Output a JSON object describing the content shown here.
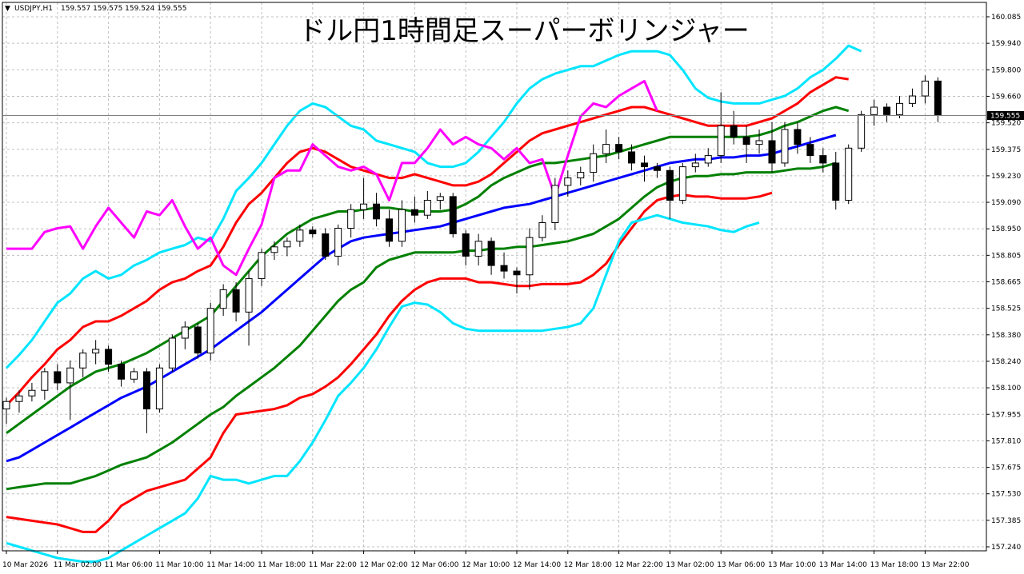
{
  "header": {
    "symbol": "USDJPY,H1",
    "ohlc": "159.557 159.575 159.524 159.555"
  },
  "title": "ドル円1時間足スーパーボリンジャー",
  "current_price_label": "159.555",
  "colors": {
    "background": "#ffffff",
    "grid": "#c0c0c0",
    "candle": "#000000",
    "middle": "#0000ff",
    "band1": "#008000",
    "band2": "#ff0000",
    "band3": "#00e5ff",
    "lagging": "#ff00ff"
  },
  "chart_data": {
    "type": "candlestick",
    "title": "ドル円1時間足スーパーボリンジャー",
    "ylim": [
      157.24,
      160.085
    ],
    "y_ticks": [
      "160.085",
      "159.940",
      "159.800",
      "159.660",
      "159.520",
      "159.375",
      "159.230",
      "159.090",
      "158.950",
      "158.805",
      "158.665",
      "158.525",
      "158.380",
      "158.240",
      "158.100",
      "157.955",
      "157.810",
      "157.675",
      "157.530",
      "157.385",
      "157.240"
    ],
    "x_ticks": [
      "10 Mar 2026",
      "11 Mar 02:00",
      "11 Mar 06:00",
      "11 Mar 10:00",
      "11 Mar 14:00",
      "11 Mar 18:00",
      "11 Mar 22:00",
      "12 Mar 02:00",
      "12 Mar 06:00",
      "12 Mar 10:00",
      "12 Mar 14:00",
      "12 Mar 18:00",
      "12 Mar 22:00",
      "13 Mar 02:00",
      "13 Mar 06:00",
      "13 Mar 10:00",
      "13 Mar 14:00",
      "13 Mar 18:00",
      "13 Mar 22:00"
    ],
    "x_tick_index": [
      0,
      4,
      8,
      12,
      16,
      20,
      24,
      28,
      32,
      36,
      40,
      44,
      48,
      52,
      56,
      60,
      64,
      68,
      72
    ],
    "grid": true,
    "candles": [
      [
        157.98,
        158.02,
        157.9,
        158.04
      ],
      [
        158.02,
        158.05,
        157.96,
        158.08
      ],
      [
        158.05,
        158.08,
        158.02,
        158.12
      ],
      [
        158.08,
        158.18,
        158.03,
        158.2
      ],
      [
        158.18,
        158.12,
        158.08,
        158.22
      ],
      [
        158.12,
        158.2,
        157.92,
        158.24
      ],
      [
        158.2,
        158.28,
        158.15,
        158.3
      ],
      [
        158.28,
        158.3,
        158.22,
        158.35
      ],
      [
        158.3,
        158.22,
        158.18,
        158.32
      ],
      [
        158.22,
        158.14,
        158.1,
        158.24
      ],
      [
        158.14,
        158.18,
        158.12,
        158.2
      ],
      [
        158.18,
        157.98,
        157.85,
        158.2
      ],
      [
        157.98,
        158.2,
        157.96,
        158.22
      ],
      [
        158.2,
        158.36,
        158.18,
        158.38
      ],
      [
        158.36,
        158.42,
        158.3,
        158.45
      ],
      [
        158.42,
        158.28,
        158.25,
        158.44
      ],
      [
        158.28,
        158.52,
        158.24,
        158.55
      ],
      [
        158.52,
        158.62,
        158.48,
        158.65
      ],
      [
        158.62,
        158.5,
        158.45,
        158.66
      ],
      [
        158.5,
        158.68,
        158.32,
        158.72
      ],
      [
        158.68,
        158.82,
        158.64,
        158.84
      ],
      [
        158.82,
        158.85,
        158.78,
        158.88
      ],
      [
        158.85,
        158.88,
        158.8,
        158.9
      ],
      [
        158.88,
        158.94,
        158.85,
        158.97
      ],
      [
        158.94,
        158.92,
        158.9,
        158.96
      ],
      [
        158.92,
        158.8,
        158.78,
        158.95
      ],
      [
        158.8,
        158.95,
        158.75,
        158.97
      ],
      [
        158.95,
        159.05,
        158.9,
        159.08
      ],
      [
        159.05,
        159.08,
        159.0,
        159.22
      ],
      [
        159.08,
        159.0,
        158.96,
        159.14
      ],
      [
        159.0,
        158.88,
        158.85,
        159.05
      ],
      [
        158.88,
        159.05,
        158.85,
        159.1
      ],
      [
        159.05,
        159.02,
        158.98,
        159.12
      ],
      [
        159.02,
        159.1,
        159.0,
        159.15
      ],
      [
        159.1,
        159.12,
        159.05,
        159.14
      ],
      [
        159.12,
        158.92,
        158.9,
        159.14
      ],
      [
        158.92,
        158.8,
        158.75,
        158.94
      ],
      [
        158.8,
        158.88,
        158.75,
        158.92
      ],
      [
        158.88,
        158.75,
        158.7,
        158.9
      ],
      [
        158.75,
        158.72,
        158.68,
        158.82
      ],
      [
        158.72,
        158.7,
        158.6,
        158.74
      ],
      [
        158.7,
        158.9,
        158.62,
        158.95
      ],
      [
        158.9,
        158.98,
        158.88,
        159.02
      ],
      [
        158.98,
        159.18,
        158.94,
        159.22
      ],
      [
        159.18,
        159.22,
        159.12,
        159.26
      ],
      [
        159.22,
        159.25,
        159.18,
        159.28
      ],
      [
        159.25,
        159.35,
        159.2,
        159.4
      ],
      [
        159.35,
        159.4,
        159.3,
        159.48
      ],
      [
        159.4,
        159.36,
        159.32,
        159.44
      ],
      [
        159.36,
        159.3,
        159.26,
        159.4
      ],
      [
        159.3,
        159.28,
        159.2,
        159.34
      ],
      [
        159.28,
        159.26,
        159.22,
        159.3
      ],
      [
        159.26,
        159.1,
        159.0,
        159.28
      ],
      [
        159.1,
        159.28,
        159.08,
        159.3
      ],
      [
        159.28,
        159.3,
        159.25,
        159.35
      ],
      [
        159.3,
        159.34,
        159.28,
        159.38
      ],
      [
        159.34,
        159.5,
        159.3,
        159.68
      ],
      [
        159.5,
        159.44,
        159.4,
        159.58
      ],
      [
        159.44,
        159.4,
        159.3,
        159.5
      ],
      [
        159.4,
        159.42,
        159.35,
        159.48
      ],
      [
        159.42,
        159.3,
        159.25,
        159.52
      ],
      [
        159.3,
        159.48,
        159.28,
        159.52
      ],
      [
        159.48,
        159.4,
        159.35,
        159.52
      ],
      [
        159.4,
        159.34,
        159.3,
        159.44
      ],
      [
        159.34,
        159.3,
        159.25,
        159.38
      ],
      [
        159.3,
        159.1,
        159.05,
        159.36
      ],
      [
        159.1,
        159.38,
        159.08,
        159.4
      ],
      [
        159.38,
        159.56,
        159.36,
        159.58
      ],
      [
        159.56,
        159.6,
        159.5,
        159.64
      ],
      [
        159.6,
        159.56,
        159.52,
        159.62
      ],
      [
        159.56,
        159.62,
        159.54,
        159.66
      ],
      [
        159.62,
        159.66,
        159.6,
        159.7
      ],
      [
        159.66,
        159.74,
        159.62,
        159.77
      ],
      [
        159.74,
        159.555,
        159.52,
        159.76
      ]
    ],
    "series": [
      {
        "key": "band3",
        "values": [
          158.2,
          158.27,
          158.35,
          158.45,
          158.55,
          158.6,
          158.68,
          158.72,
          158.68,
          158.7,
          158.75,
          158.78,
          158.82,
          158.84,
          158.86,
          158.9,
          158.88,
          159.0,
          159.15,
          159.22,
          159.3,
          159.4,
          159.5,
          159.58,
          159.62,
          159.6,
          159.55,
          159.5,
          159.48,
          159.42,
          159.4,
          159.38,
          159.36,
          159.3,
          159.28,
          159.28,
          159.3,
          159.36,
          159.44,
          159.52,
          159.62,
          159.7,
          159.75,
          159.78,
          159.8,
          159.82,
          159.82,
          159.85,
          159.88,
          159.9,
          159.9,
          159.9,
          159.88,
          159.8,
          159.7,
          159.65,
          159.63,
          159.62,
          159.62,
          159.62,
          159.64,
          159.66,
          159.7,
          159.76,
          159.8,
          159.86,
          159.93,
          159.9
        ]
      },
      {
        "key": "band2",
        "values": [
          158.0,
          158.07,
          158.15,
          158.22,
          158.3,
          158.35,
          158.42,
          158.45,
          158.45,
          158.48,
          158.52,
          158.56,
          158.62,
          158.66,
          158.68,
          158.72,
          158.75,
          158.85,
          158.98,
          159.08,
          159.14,
          159.22,
          159.3,
          159.36,
          159.38,
          159.36,
          159.32,
          159.28,
          159.26,
          159.24,
          159.22,
          159.22,
          159.24,
          159.22,
          159.2,
          159.18,
          159.18,
          159.2,
          159.24,
          159.3,
          159.36,
          159.42,
          159.46,
          159.48,
          159.5,
          159.52,
          159.54,
          159.56,
          159.58,
          159.6,
          159.6,
          159.58,
          159.56,
          159.54,
          159.52,
          159.5,
          159.5,
          159.5,
          159.5,
          159.52,
          159.54,
          159.58,
          159.62,
          159.68,
          159.72,
          159.76,
          159.75
        ]
      },
      {
        "key": "band1",
        "values": [
          157.85,
          157.9,
          157.95,
          158.0,
          158.05,
          158.1,
          158.14,
          158.18,
          158.2,
          158.22,
          158.25,
          158.28,
          158.32,
          158.36,
          158.4,
          158.44,
          158.48,
          158.56,
          158.64,
          158.72,
          158.8,
          158.86,
          158.92,
          158.96,
          159.0,
          159.02,
          159.04,
          159.04,
          159.05,
          159.06,
          159.06,
          159.05,
          159.04,
          159.04,
          159.04,
          159.05,
          159.08,
          159.12,
          159.18,
          159.22,
          159.25,
          159.28,
          159.3,
          159.3,
          159.31,
          159.32,
          159.33,
          159.34,
          159.36,
          159.38,
          159.4,
          159.42,
          159.44,
          159.44,
          159.44,
          159.44,
          159.44,
          159.44,
          159.44,
          159.45,
          159.47,
          159.5,
          159.52,
          159.55,
          159.58,
          159.6,
          159.58
        ]
      },
      {
        "key": "middle",
        "values": [
          157.7,
          157.72,
          157.76,
          157.8,
          157.84,
          157.88,
          157.92,
          157.96,
          158.0,
          158.04,
          158.07,
          158.1,
          158.14,
          158.18,
          158.22,
          158.26,
          158.3,
          158.35,
          158.4,
          158.45,
          158.5,
          158.56,
          158.62,
          158.68,
          158.74,
          158.8,
          158.84,
          158.88,
          158.9,
          158.91,
          158.92,
          158.93,
          158.94,
          158.95,
          158.96,
          158.98,
          159.0,
          159.02,
          159.04,
          159.06,
          159.07,
          159.08,
          159.1,
          159.12,
          159.14,
          159.16,
          159.18,
          159.2,
          159.22,
          159.24,
          159.26,
          159.28,
          159.3,
          159.31,
          159.32,
          159.32,
          159.33,
          159.33,
          159.34,
          159.34,
          159.35,
          159.37,
          159.39,
          159.41,
          159.43,
          159.45
        ]
      },
      {
        "key": "band1_low",
        "values": [
          157.55,
          157.56,
          157.57,
          157.58,
          157.58,
          157.58,
          157.6,
          157.62,
          157.65,
          157.68,
          157.7,
          157.72,
          157.76,
          157.8,
          157.85,
          157.9,
          157.95,
          157.99,
          158.05,
          158.1,
          158.15,
          158.2,
          158.26,
          158.32,
          158.4,
          158.48,
          158.56,
          158.62,
          158.66,
          158.74,
          158.78,
          158.8,
          158.82,
          158.82,
          158.82,
          158.82,
          158.83,
          158.83,
          158.84,
          158.84,
          158.85,
          158.85,
          158.86,
          158.87,
          158.88,
          158.9,
          158.92,
          158.96,
          159.0,
          159.06,
          159.12,
          159.17,
          159.2,
          159.22,
          159.23,
          159.23,
          159.24,
          159.24,
          159.25,
          159.25,
          159.25,
          159.26,
          159.27,
          159.27,
          159.28,
          159.3
        ]
      },
      {
        "key": "band2_low",
        "values": [
          157.4,
          157.39,
          157.38,
          157.37,
          157.36,
          157.34,
          157.32,
          157.32,
          157.38,
          157.46,
          157.5,
          157.54,
          157.56,
          157.58,
          157.6,
          157.66,
          157.72,
          157.85,
          157.95,
          157.96,
          157.97,
          157.98,
          158.0,
          158.04,
          158.06,
          158.1,
          158.15,
          158.22,
          158.3,
          158.38,
          158.48,
          158.56,
          158.62,
          158.66,
          158.68,
          158.68,
          158.68,
          158.66,
          158.66,
          158.65,
          158.64,
          158.64,
          158.65,
          158.65,
          158.65,
          158.66,
          158.7,
          158.76,
          158.86,
          158.95,
          159.04,
          159.1,
          159.12,
          159.13,
          159.12,
          159.12,
          159.11,
          159.11,
          159.11,
          159.12,
          159.14
        ]
      },
      {
        "key": "band3_low",
        "values": [
          157.26,
          157.24,
          157.22,
          157.2,
          157.18,
          157.17,
          157.16,
          157.16,
          157.18,
          157.22,
          157.26,
          157.3,
          157.34,
          157.38,
          157.42,
          157.5,
          157.62,
          157.6,
          157.6,
          157.58,
          157.6,
          157.62,
          157.62,
          157.7,
          157.8,
          157.92,
          158.05,
          158.12,
          158.2,
          158.3,
          158.42,
          158.53,
          158.55,
          158.54,
          158.5,
          158.44,
          158.41,
          158.4,
          158.4,
          158.4,
          158.4,
          158.4,
          158.4,
          158.41,
          158.42,
          158.44,
          158.52,
          158.7,
          158.88,
          158.98,
          159.0,
          159.02,
          159.0,
          158.98,
          158.97,
          158.96,
          158.94,
          158.93,
          158.96,
          158.98
        ]
      },
      {
        "key": "lagging",
        "values": [
          158.84,
          158.84,
          158.84,
          158.93,
          158.95,
          158.96,
          158.84,
          158.96,
          159.06,
          158.98,
          158.9,
          159.04,
          159.02,
          159.1,
          158.96,
          158.84,
          158.9,
          158.75,
          158.7,
          158.84,
          158.97,
          159.22,
          159.26,
          159.26,
          159.4,
          159.34,
          159.28,
          159.26,
          159.28,
          159.24,
          159.1,
          159.3,
          159.3,
          159.38,
          159.48,
          159.4,
          159.44,
          159.4,
          159.38,
          159.32,
          159.38,
          159.3,
          159.32,
          159.12,
          159.34,
          159.55,
          159.62,
          159.6,
          159.66,
          159.7,
          159.74,
          159.58
        ]
      }
    ]
  }
}
